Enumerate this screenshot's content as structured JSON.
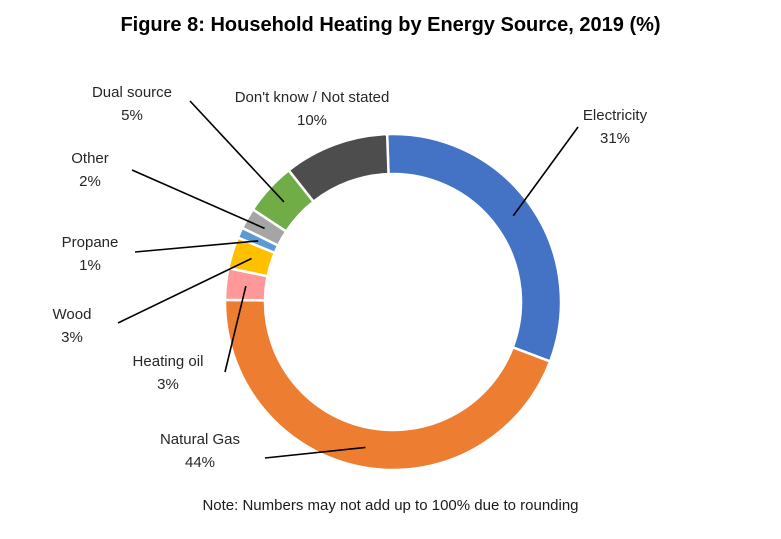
{
  "chart_data": {
    "type": "pie",
    "variant": "donut",
    "title": "Figure 8: Household Heating by Energy Source, 2019 (%)",
    "note": "Note: Numbers may not add up to 100% due to rounding",
    "legend": "none",
    "slices": [
      {
        "label": "Electricity",
        "value": 31,
        "value_label": "31%",
        "color": "#4472C4"
      },
      {
        "label": "Natural Gas",
        "value": 44,
        "value_label": "44%",
        "color": "#ED7D31"
      },
      {
        "label": "Heating oil",
        "value": 3,
        "value_label": "3%",
        "color": "#FF9999"
      },
      {
        "label": "Wood",
        "value": 3,
        "value_label": "3%",
        "color": "#FFC000"
      },
      {
        "label": "Propane",
        "value": 1,
        "value_label": "1%",
        "color": "#5B9BD5"
      },
      {
        "label": "Other",
        "value": 2,
        "value_label": "2%",
        "color": "#A5A5A5"
      },
      {
        "label": "Dual source",
        "value": 5,
        "value_label": "5%",
        "color": "#70AD47"
      },
      {
        "label": "Don't know / Not stated",
        "value": 10,
        "value_label": "10%",
        "color": "#4D4D4D"
      }
    ]
  }
}
